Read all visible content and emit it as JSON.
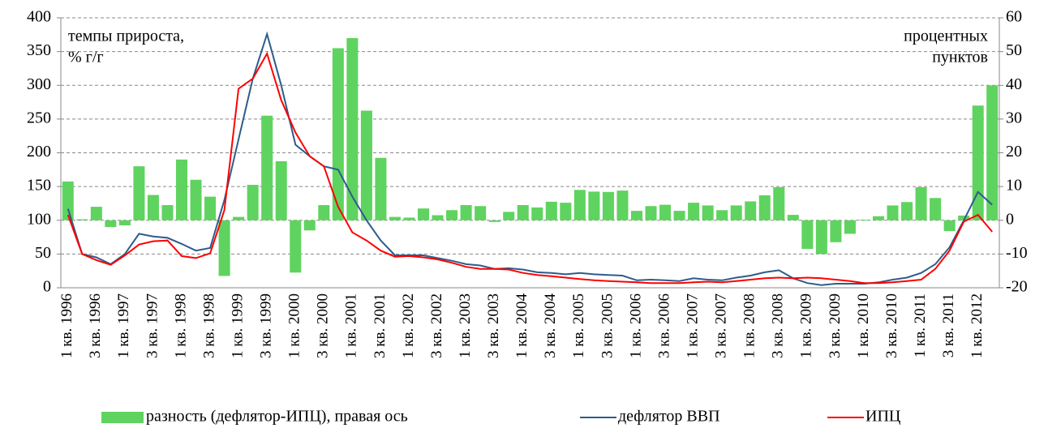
{
  "chart_data": {
    "type": "combo",
    "left_note": [
      "темпы прироста,",
      "% г/г"
    ],
    "right_note": [
      "процентных",
      "пунктов"
    ],
    "categories": [
      "1 кв. 1996",
      null,
      "3 кв. 1996",
      null,
      "1 кв. 1997",
      null,
      "3 кв. 1997",
      null,
      "1 кв. 1998",
      null,
      "3 кв. 1998",
      null,
      "1 кв. 1999",
      null,
      "3 кв. 1999",
      null,
      "1 кв. 2000",
      null,
      "3 кв. 2000",
      null,
      "1 кв. 2001",
      null,
      "3 кв. 2001",
      null,
      "1 кв. 2002",
      null,
      "3 кв. 2002",
      null,
      "1 кв. 2003",
      null,
      "3 кв. 2003",
      null,
      "1 кв. 2004",
      null,
      "3 кв. 2004",
      null,
      "1 кв. 2005",
      null,
      "3 кв. 2005",
      null,
      "1 кв. 2006",
      null,
      "3 кв. 2006",
      null,
      "1 кв. 2007",
      null,
      "3 кв. 2007",
      null,
      "1 кв. 2008",
      null,
      "3 кв. 2008",
      null,
      "1 кв. 2009",
      null,
      "3 кв. 2009",
      null,
      "1 кв. 2010",
      null,
      "3 кв. 2010",
      null,
      "1 кв. 2011",
      null,
      "3 кв. 2011",
      null,
      "1 кв. 2012",
      null
    ],
    "series": [
      {
        "name": "разность (дефлятор-ИПЦ), правая ось",
        "type": "bar",
        "axis": "y2",
        "color": "#5fd35f",
        "values": [
          11.5,
          0.3,
          4,
          -2,
          -1.5,
          16,
          7.5,
          4.5,
          18,
          12,
          7,
          -16.5,
          1,
          10.5,
          31,
          17.5,
          -15.5,
          -3,
          4.5,
          51,
          54,
          32.5,
          18.5,
          1,
          0.8,
          3.5,
          1.5,
          3,
          4.5,
          4.2,
          -0.5,
          2.5,
          4.5,
          3.8,
          5.5,
          5.2,
          9,
          8.5,
          8.4,
          8.8,
          2.8,
          4.2,
          4.6,
          2.8,
          5.2,
          4.4,
          3,
          4.4,
          5.6,
          7.4,
          9.8,
          1.6,
          -8.5,
          -10,
          -6.5,
          -4,
          0.2,
          1.2,
          4.4,
          5.4,
          9.8,
          6.6,
          -3.2,
          1.4,
          34,
          40
        ]
      },
      {
        "name": "дефлятор ВВП",
        "type": "line",
        "axis": "y",
        "color": "#2e5c8a",
        "values": [
          117,
          50,
          45,
          35,
          50,
          80,
          76,
          74,
          65,
          55,
          59,
          130,
          220,
          310,
          376,
          300,
          212,
          195,
          180,
          175,
          135,
          100,
          70,
          48,
          48,
          48,
          44,
          40,
          35,
          33,
          28,
          29,
          27,
          23,
          22,
          20,
          22,
          20,
          19,
          18,
          11,
          12,
          11,
          10,
          14,
          12,
          11,
          15,
          18,
          23,
          26,
          14,
          7,
          4,
          6,
          6,
          6,
          8,
          12,
          15,
          22,
          35,
          60,
          100,
          142,
          123
        ]
      },
      {
        "name": "ИПЦ",
        "type": "line",
        "axis": "y",
        "color": "#ff0000",
        "values": [
          108,
          50,
          41,
          34,
          48,
          64,
          69,
          70,
          47,
          44,
          51,
          115,
          295,
          310,
          347,
          278,
          230,
          195,
          180,
          120,
          82,
          70,
          55,
          46,
          47,
          45,
          42,
          37,
          31,
          28,
          28,
          27,
          22,
          19,
          17,
          15,
          13,
          11,
          10,
          9,
          8,
          7,
          7,
          7,
          8,
          9,
          8,
          10,
          12,
          14,
          15,
          14,
          15,
          14,
          12,
          10,
          7,
          7,
          8,
          10,
          12,
          28,
          55,
          98,
          108,
          83
        ]
      }
    ],
    "ylim": [
      0,
      400
    ],
    "yticks": [
      0,
      50,
      100,
      150,
      200,
      250,
      300,
      350,
      400
    ],
    "y2lim": [
      -20,
      60
    ],
    "y2ticks": [
      -20,
      -10,
      0,
      10,
      20,
      30,
      40,
      50,
      60
    ],
    "grid": true
  }
}
